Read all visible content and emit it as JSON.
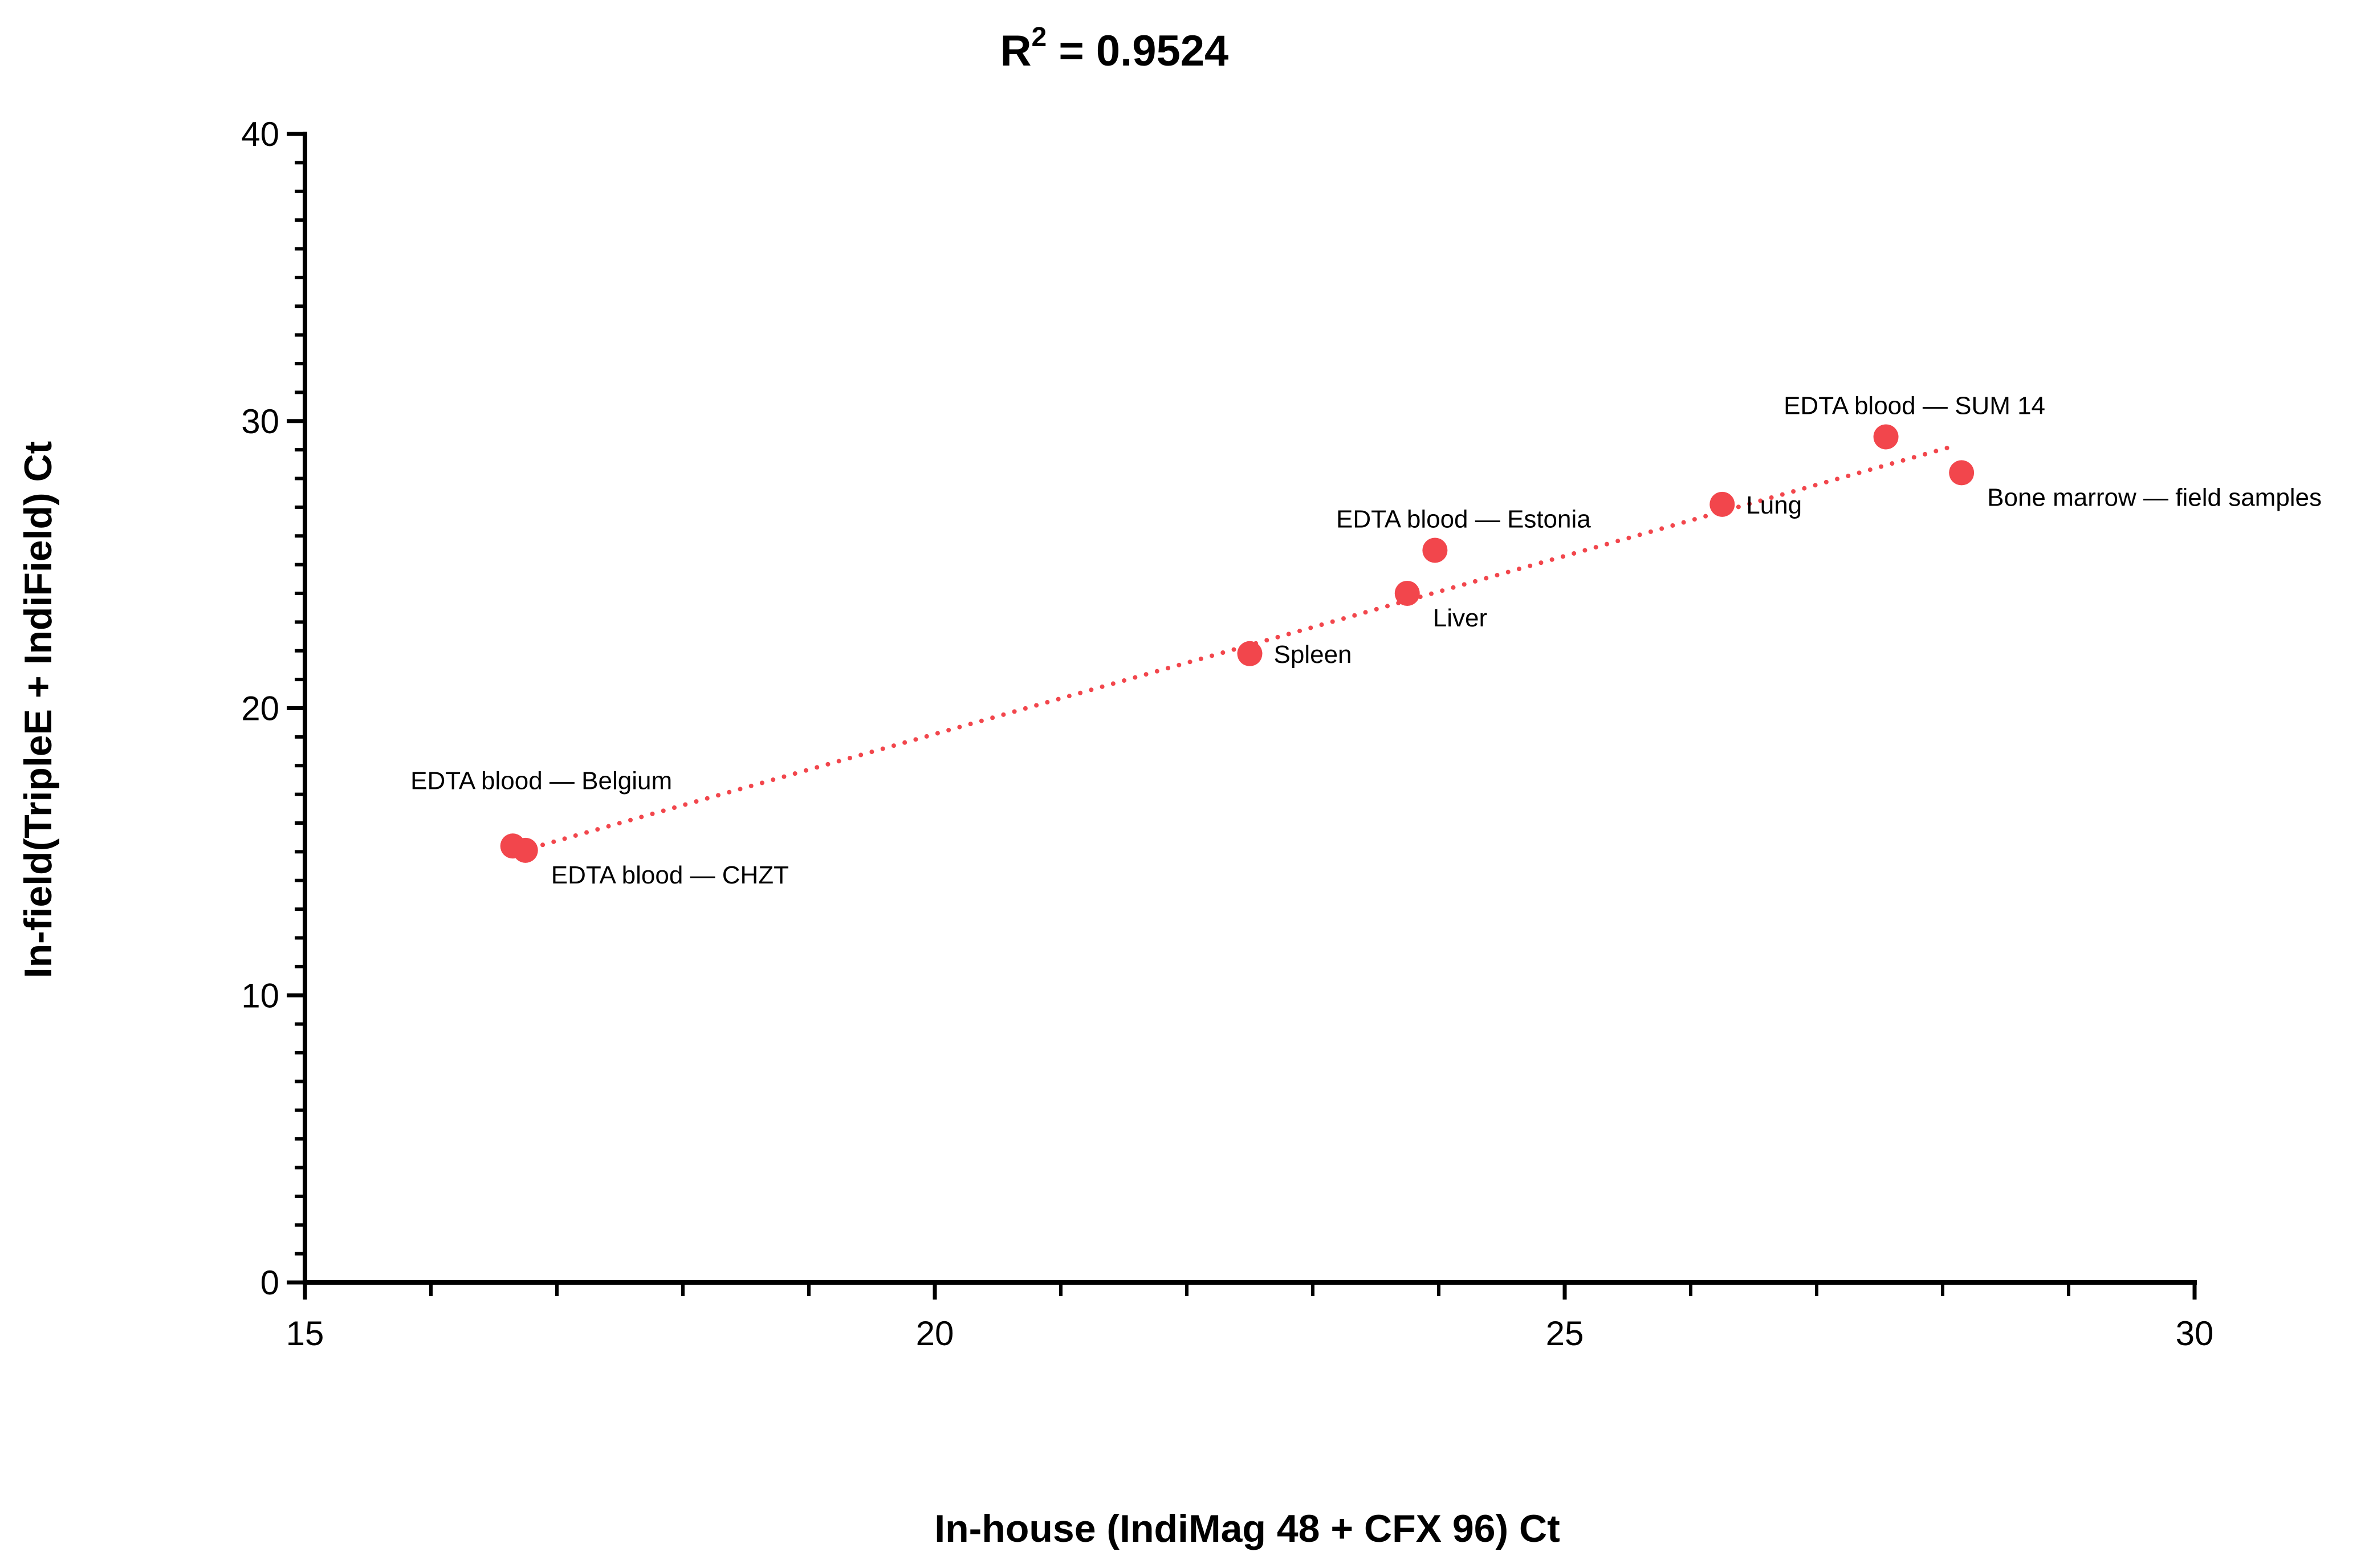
{
  "chart_data": {
    "type": "scatter",
    "title": "R² = 0.9524",
    "title_base": "R",
    "title_superscript": "2",
    "title_value": " = 0.9524",
    "xlabel": "In-house (IndiMag 48 + CFX 96) Ct",
    "ylabel": "In-field(TripleE + IndiField) Ct",
    "xlim": [
      15,
      30
    ],
    "ylim": [
      0,
      40
    ],
    "x_ticks": [
      15,
      20,
      25,
      30
    ],
    "y_ticks": [
      0,
      10,
      20,
      30,
      40
    ],
    "x_minor_step": 1,
    "y_minor_step": 1,
    "grid": false,
    "marker_color": "#F2464C",
    "trendline": {
      "style": "dotted",
      "color": "#F2464C",
      "x_start": 16.8,
      "x_end": 28.1,
      "slope": 1.24,
      "intercept": -5.7
    },
    "points": [
      {
        "label": "EDTA blood — Belgium",
        "x": 16.65,
        "y": 15.2,
        "label_pos": "above-left"
      },
      {
        "label": "EDTA blood — CHZT",
        "x": 16.75,
        "y": 15.05,
        "label_pos": "below-right"
      },
      {
        "label": "Spleen",
        "x": 22.5,
        "y": 21.9,
        "label_pos": "right"
      },
      {
        "label": "Liver",
        "x": 23.75,
        "y": 24.0,
        "label_pos": "below-right"
      },
      {
        "label": "EDTA blood — Estonia",
        "x": 23.97,
        "y": 25.5,
        "label_pos": "above"
      },
      {
        "label": "Lung",
        "x": 26.25,
        "y": 27.1,
        "label_pos": "right"
      },
      {
        "label": "EDTA blood — SUM 14",
        "x": 27.55,
        "y": 29.45,
        "label_pos": "above"
      },
      {
        "label": "Bone marrow — field samples",
        "x": 28.15,
        "y": 28.2,
        "label_pos": "below-right"
      }
    ]
  }
}
